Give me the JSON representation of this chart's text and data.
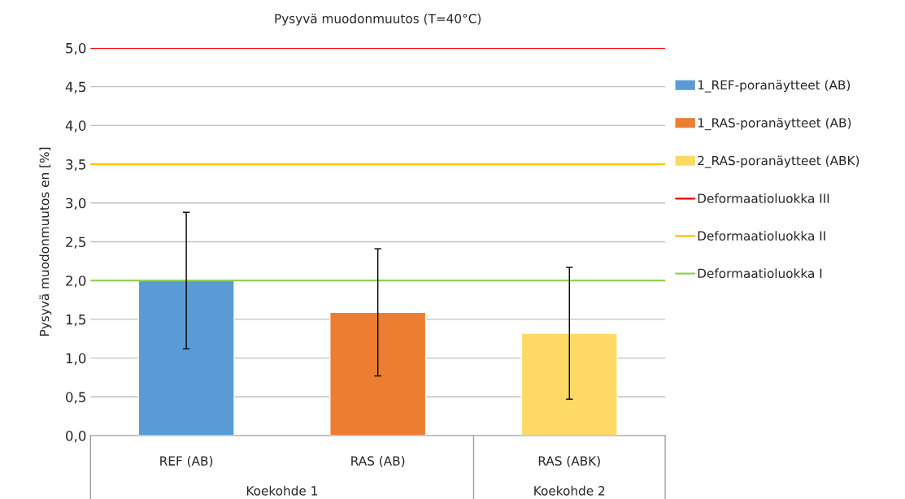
{
  "chart_data": {
    "type": "bar",
    "title": "Pysyvä muodonmuutos (T=40°C)",
    "ylabel": "Pysyvä muodonmuutos en [%]",
    "categories": [
      "REF (AB)",
      "RAS (AB)",
      "RAS (ABK)"
    ],
    "series": [
      {
        "name": "1_REF-poranäytteet (AB)",
        "color": "#5b9bd5",
        "values": [
          2.0,
          null,
          null
        ],
        "errors": [
          0.88,
          null,
          null
        ]
      },
      {
        "name": "1_RAS-poranäytteet (AB)",
        "color": "#ed7d31",
        "values": [
          null,
          1.59,
          null
        ],
        "errors": [
          null,
          0.82,
          null
        ]
      },
      {
        "name": "2_RAS-poranäytteet (ABK)",
        "color": "#ffd966",
        "values": [
          null,
          null,
          1.32
        ],
        "errors": [
          null,
          null,
          0.85
        ]
      }
    ],
    "ref_lines": [
      {
        "axis": "y",
        "value": 5.0,
        "label": "Deformaatioluokka III",
        "color": "#ff0000"
      },
      {
        "axis": "y",
        "value": 3.5,
        "label": "Deformaatioluokka II",
        "color": "#ffc000"
      },
      {
        "axis": "y",
        "value": 2.0,
        "label": "Deformaatioluokka I",
        "color": "#92d050"
      }
    ],
    "annotations": [
      "Koekohde 1",
      "Koekohde 2"
    ],
    "ylim": [
      0,
      5.0
    ],
    "yticks": [
      {
        "value": 0,
        "label": "0,0"
      },
      {
        "value": 0.5,
        "label": "0,5"
      },
      {
        "value": 1.0,
        "label": "1,0"
      },
      {
        "value": 1.5,
        "label": "1,5"
      },
      {
        "value": 2.0,
        "label": "2,0"
      },
      {
        "value": 2.5,
        "label": "2,5"
      },
      {
        "value": 3.0,
        "label": "3,0"
      },
      {
        "value": 3.5,
        "label": "3,5"
      },
      {
        "value": 4.0,
        "label": "4,0"
      },
      {
        "value": 4.5,
        "label": "4,5"
      },
      {
        "value": 5.0,
        "label": "5,0"
      }
    ],
    "grid": "y",
    "legend": "right"
  }
}
